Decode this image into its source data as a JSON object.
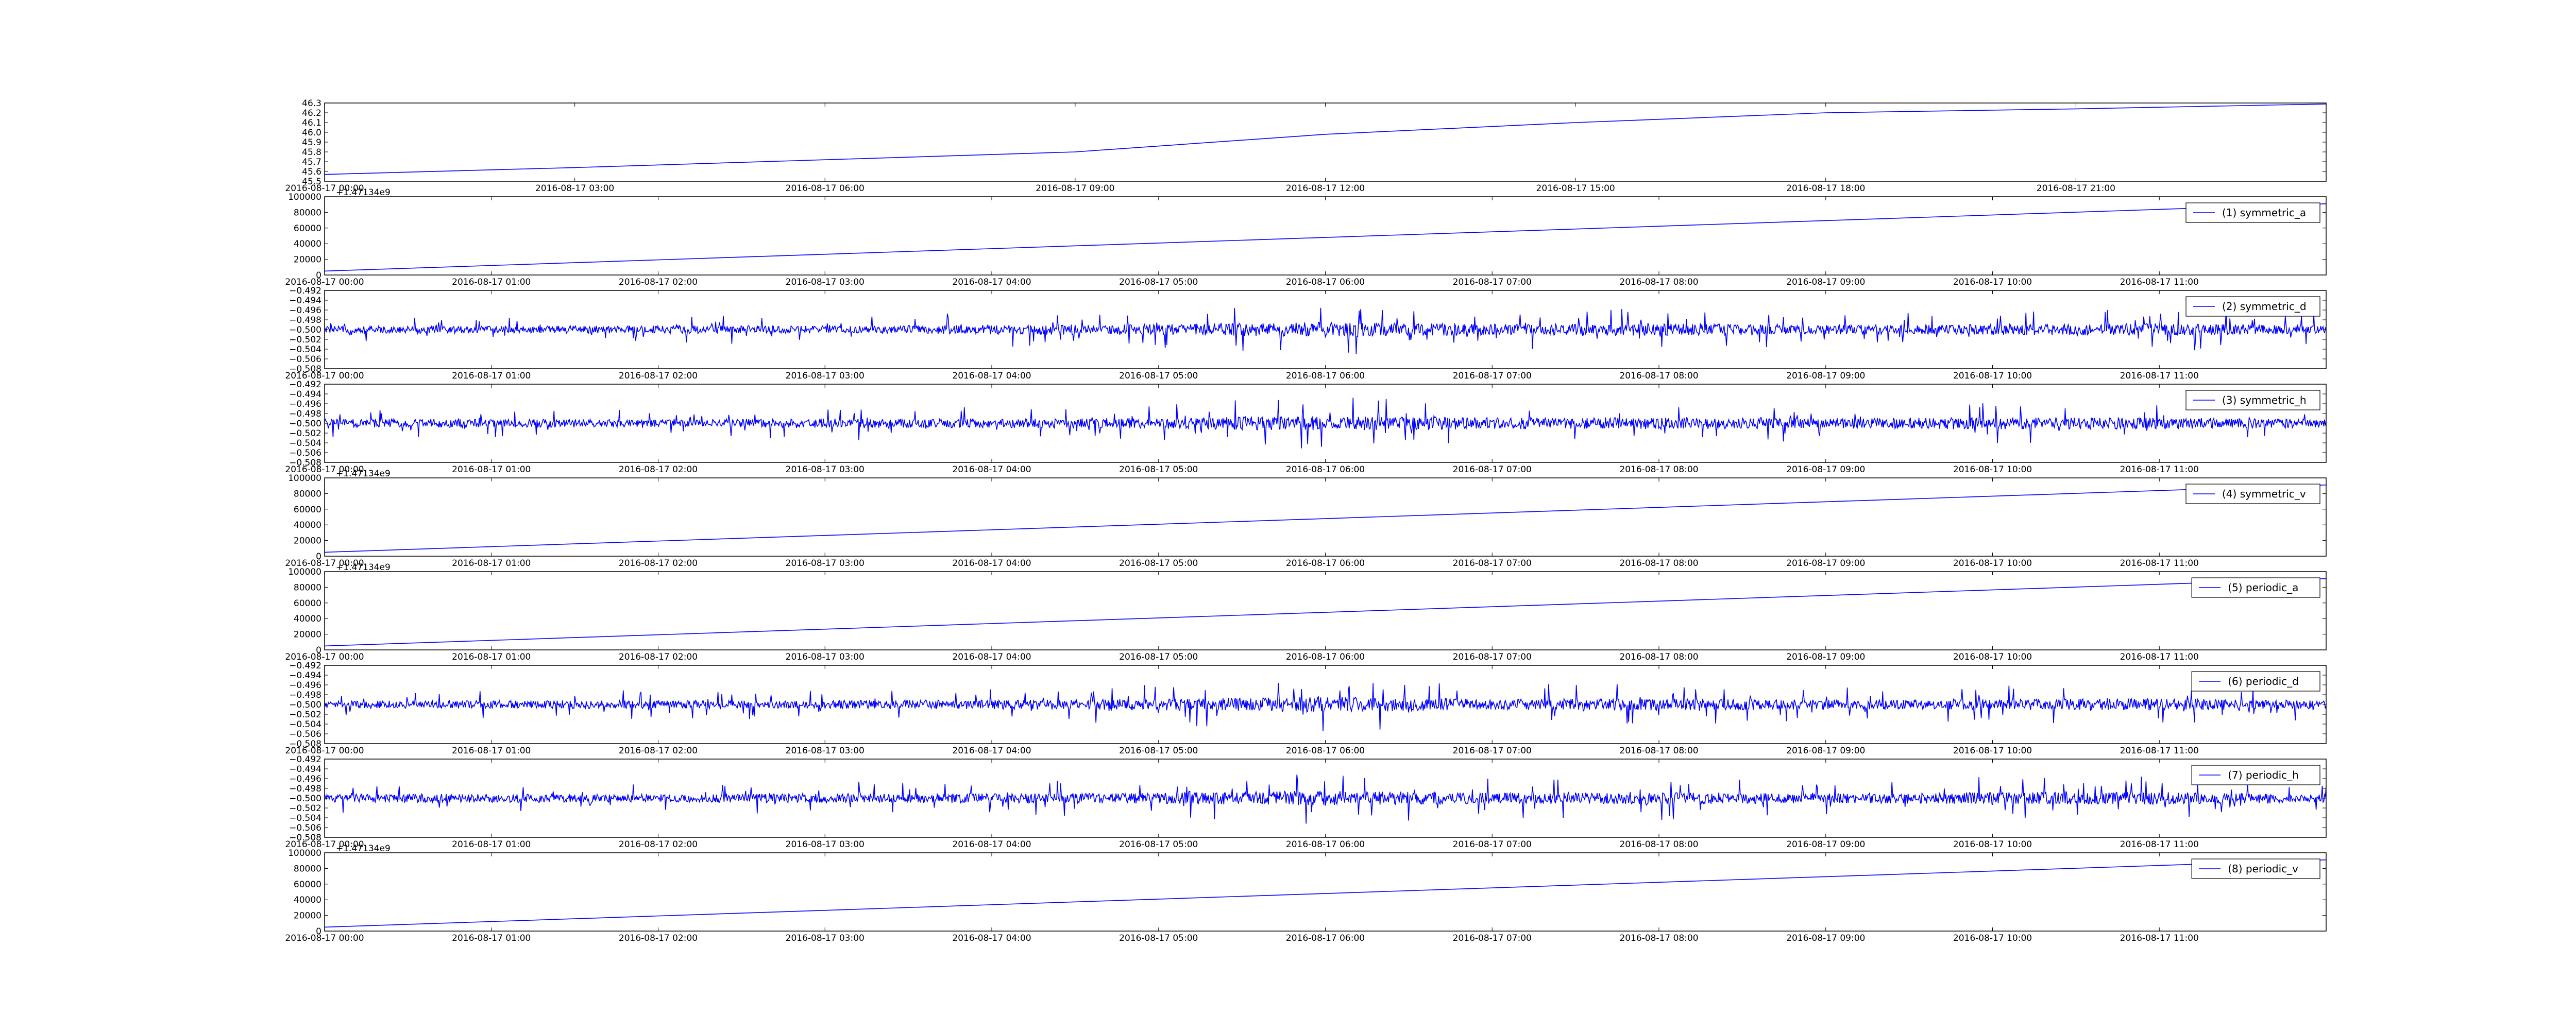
{
  "chart_data": [
    {
      "type": "line",
      "title": "",
      "xlabel": "",
      "ylabel": "",
      "legend": "",
      "x_tick_labels": [
        "2016-08-17 00:00",
        "2016-08-17 03:00",
        "2016-08-17 06:00",
        "2016-08-17 09:00",
        "2016-08-17 12:00",
        "2016-08-17 15:00",
        "2016-08-17 18:00",
        "2016-08-17 21:00"
      ],
      "x_range": [
        "2016-08-17 00:00",
        "2016-08-18 00:00"
      ],
      "ylim": [
        45.5,
        46.3
      ],
      "y_ticks": [
        "45.5",
        "45.6",
        "45.7",
        "45.8",
        "45.9",
        "46.0",
        "46.1",
        "46.2",
        "46.3"
      ],
      "line_points": [
        [
          "2016-08-17 00:00",
          45.57
        ],
        [
          "2016-08-17 03:00",
          45.64
        ],
        [
          "2016-08-17 06:00",
          45.72
        ],
        [
          "2016-08-17 09:00",
          45.8
        ],
        [
          "2016-08-17 12:00",
          45.98
        ],
        [
          "2016-08-17 15:00",
          46.1
        ],
        [
          "2016-08-17 18:00",
          46.2
        ],
        [
          "2016-08-17 21:00",
          46.24
        ],
        [
          "2016-08-18 00:00",
          46.29
        ]
      ],
      "line_color": "#0000ff",
      "grid": false
    },
    {
      "type": "line",
      "legend": "(1) symmetric_a",
      "legend_position": "top-right",
      "offset_text": "+1.47134e9",
      "ylim": [
        0,
        100000
      ],
      "y_ticks": [
        "0",
        "20000",
        "40000",
        "60000",
        "80000",
        "100000"
      ],
      "x_tick_labels": [
        "2016-08-17 00:00",
        "2016-08-17 01:00",
        "2016-08-17 02:00",
        "2016-08-17 03:00",
        "2016-08-17 04:00",
        "2016-08-17 05:00",
        "2016-08-17 06:00",
        "2016-08-17 07:00",
        "2016-08-17 08:00",
        "2016-08-17 09:00",
        "2016-08-17 10:00",
        "2016-08-17 11:00"
      ],
      "x_range": [
        "2016-08-17 00:00",
        "2016-08-17 12:00"
      ],
      "line_points": [
        [
          "2016-08-17 00:00",
          5000
        ],
        [
          "2016-08-17 12:00",
          91000
        ]
      ],
      "line_color": "#0000ff"
    },
    {
      "type": "line",
      "legend": "(2) symmetric_d",
      "legend_position": "top-right",
      "ylim": [
        -0.508,
        -0.492
      ],
      "y_ticks": [
        "−0.508",
        "−0.506",
        "−0.504",
        "−0.502",
        "−0.500",
        "−0.498",
        "−0.496",
        "−0.494",
        "−0.492"
      ],
      "x_tick_labels": [
        "2016-08-17 00:00",
        "2016-08-17 01:00",
        "2016-08-17 02:00",
        "2016-08-17 03:00",
        "2016-08-17 04:00",
        "2016-08-17 05:00",
        "2016-08-17 06:00",
        "2016-08-17 07:00",
        "2016-08-17 08:00",
        "2016-08-17 09:00",
        "2016-08-17 10:00",
        "2016-08-17 11:00"
      ],
      "x_range": [
        "2016-08-17 00:00",
        "2016-08-17 12:00"
      ],
      "baseline": -0.5,
      "amplitude_profile": [
        0.0025,
        0.0028,
        0.003,
        0.0028,
        0.0035,
        0.004,
        0.0055,
        0.004,
        0.0045,
        0.0035,
        0.004,
        0.0045,
        0.003
      ],
      "line_color": "#0000ff"
    },
    {
      "type": "line",
      "legend": "(3) symmetric_h",
      "legend_position": "top-right",
      "ylim": [
        -0.508,
        -0.492
      ],
      "y_ticks": [
        "−0.508",
        "−0.506",
        "−0.504",
        "−0.502",
        "−0.500",
        "−0.498",
        "−0.496",
        "−0.494",
        "−0.492"
      ],
      "x_tick_labels": [
        "2016-08-17 00:00",
        "2016-08-17 01:00",
        "2016-08-17 02:00",
        "2016-08-17 03:00",
        "2016-08-17 04:00",
        "2016-08-17 05:00",
        "2016-08-17 06:00",
        "2016-08-17 07:00",
        "2016-08-17 08:00",
        "2016-08-17 09:00",
        "2016-08-17 10:00",
        "2016-08-17 11:00"
      ],
      "x_range": [
        "2016-08-17 00:00",
        "2016-08-17 12:00"
      ],
      "baseline": -0.5,
      "amplitude_profile": [
        0.003,
        0.0032,
        0.0028,
        0.0035,
        0.0033,
        0.004,
        0.0055,
        0.0042,
        0.0045,
        0.0035,
        0.0045,
        0.0042,
        0.003
      ],
      "line_color": "#0000ff"
    },
    {
      "type": "line",
      "legend": "(4) symmetric_v",
      "legend_position": "top-right",
      "offset_text": "+1.47134e9",
      "ylim": [
        0,
        100000
      ],
      "y_ticks": [
        "0",
        "20000",
        "40000",
        "60000",
        "80000",
        "100000"
      ],
      "x_tick_labels": [
        "2016-08-17 00:00",
        "2016-08-17 01:00",
        "2016-08-17 02:00",
        "2016-08-17 03:00",
        "2016-08-17 04:00",
        "2016-08-17 05:00",
        "2016-08-17 06:00",
        "2016-08-17 07:00",
        "2016-08-17 08:00",
        "2016-08-17 09:00",
        "2016-08-17 10:00",
        "2016-08-17 11:00"
      ],
      "x_range": [
        "2016-08-17 00:00",
        "2016-08-17 12:00"
      ],
      "line_points": [
        [
          "2016-08-17 00:00",
          5000
        ],
        [
          "2016-08-17 12:00",
          91000
        ]
      ],
      "line_color": "#0000ff"
    },
    {
      "type": "line",
      "legend": "(5) periodic_a",
      "legend_position": "top-right",
      "offset_text": "+1.47134e9",
      "ylim": [
        0,
        100000
      ],
      "y_ticks": [
        "0",
        "20000",
        "40000",
        "60000",
        "80000",
        "100000"
      ],
      "x_tick_labels": [
        "2016-08-17 00:00",
        "2016-08-17 01:00",
        "2016-08-17 02:00",
        "2016-08-17 03:00",
        "2016-08-17 04:00",
        "2016-08-17 05:00",
        "2016-08-17 06:00",
        "2016-08-17 07:00",
        "2016-08-17 08:00",
        "2016-08-17 09:00",
        "2016-08-17 10:00",
        "2016-08-17 11:00"
      ],
      "x_range": [
        "2016-08-17 00:00",
        "2016-08-17 12:00"
      ],
      "line_points": [
        [
          "2016-08-17 00:00",
          5000
        ],
        [
          "2016-08-17 12:00",
          91000
        ]
      ],
      "line_color": "#0000ff"
    },
    {
      "type": "line",
      "legend": "(6) periodic_d",
      "legend_position": "top-right",
      "ylim": [
        -0.508,
        -0.492
      ],
      "y_ticks": [
        "−0.508",
        "−0.506",
        "−0.504",
        "−0.502",
        "−0.500",
        "−0.498",
        "−0.496",
        "−0.494",
        "−0.492"
      ],
      "x_tick_labels": [
        "2016-08-17 00:00",
        "2016-08-17 01:00",
        "2016-08-17 02:00",
        "2016-08-17 03:00",
        "2016-08-17 04:00",
        "2016-08-17 05:00",
        "2016-08-17 06:00",
        "2016-08-17 07:00",
        "2016-08-17 08:00",
        "2016-08-17 09:00",
        "2016-08-17 10:00",
        "2016-08-17 11:00"
      ],
      "x_range": [
        "2016-08-17 00:00",
        "2016-08-17 12:00"
      ],
      "baseline": -0.5,
      "amplitude_profile": [
        0.0028,
        0.003,
        0.003,
        0.003,
        0.0035,
        0.0042,
        0.0058,
        0.004,
        0.0045,
        0.0035,
        0.004,
        0.0045,
        0.003
      ],
      "line_color": "#0000ff"
    },
    {
      "type": "line",
      "legend": "(7) periodic_h",
      "legend_position": "top-right",
      "ylim": [
        -0.508,
        -0.492
      ],
      "y_ticks": [
        "−0.508",
        "−0.506",
        "−0.504",
        "−0.502",
        "−0.500",
        "−0.498",
        "−0.496",
        "−0.494",
        "−0.492"
      ],
      "x_tick_labels": [
        "2016-08-17 00:00",
        "2016-08-17 01:00",
        "2016-08-17 02:00",
        "2016-08-17 03:00",
        "2016-08-17 04:00",
        "2016-08-17 05:00",
        "2016-08-17 06:00",
        "2016-08-17 07:00",
        "2016-08-17 08:00",
        "2016-08-17 09:00",
        "2016-08-17 10:00",
        "2016-08-17 11:00"
      ],
      "x_range": [
        "2016-08-17 00:00",
        "2016-08-17 12:00"
      ],
      "baseline": -0.5,
      "amplitude_profile": [
        0.003,
        0.0032,
        0.0028,
        0.0035,
        0.0035,
        0.004,
        0.0055,
        0.004,
        0.0045,
        0.0035,
        0.0045,
        0.0045,
        0.003
      ],
      "line_color": "#0000ff"
    },
    {
      "type": "line",
      "legend": "(8) periodic_v",
      "legend_position": "top-right",
      "offset_text": "+1.47134e9",
      "ylim": [
        0,
        100000
      ],
      "y_ticks": [
        "0",
        "20000",
        "40000",
        "60000",
        "80000",
        "100000"
      ],
      "x_tick_labels": [
        "2016-08-17 00:00",
        "2016-08-17 01:00",
        "2016-08-17 02:00",
        "2016-08-17 03:00",
        "2016-08-17 04:00",
        "2016-08-17 05:00",
        "2016-08-17 06:00",
        "2016-08-17 07:00",
        "2016-08-17 08:00",
        "2016-08-17 09:00",
        "2016-08-17 10:00",
        "2016-08-17 11:00"
      ],
      "x_range": [
        "2016-08-17 00:00",
        "2016-08-17 12:00"
      ],
      "line_points": [
        [
          "2016-08-17 00:00",
          5000
        ],
        [
          "2016-08-17 12:00",
          91000
        ]
      ],
      "line_color": "#0000ff"
    }
  ]
}
